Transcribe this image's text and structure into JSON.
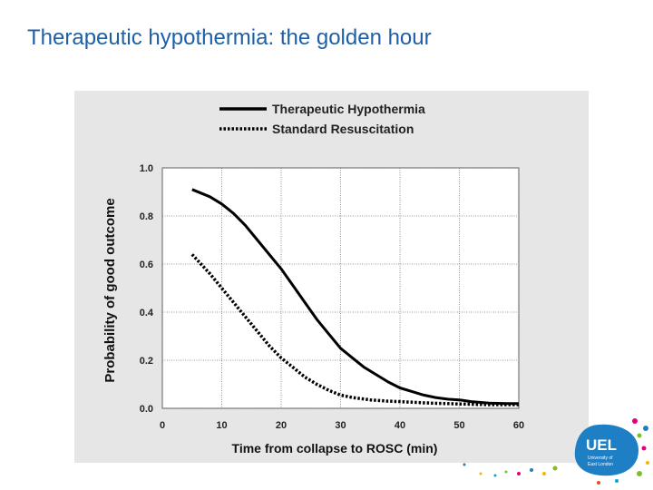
{
  "slide": {
    "title": "Therapeutic hypothermia: the golden hour"
  },
  "logo": {
    "text": "UEL",
    "subtext_line1": "University of",
    "subtext_line2": "East London",
    "color": "#1f7fc4"
  },
  "chart_data": {
    "type": "line",
    "title": "",
    "xlabel": "Time from collapse to ROSC (min)",
    "ylabel": "Probability of good outcome",
    "xlim": [
      0,
      60
    ],
    "ylim": [
      0,
      1.0
    ],
    "x_ticks": [
      "0",
      "10",
      "20",
      "30",
      "40",
      "50",
      "60"
    ],
    "y_ticks": [
      "0.0",
      "0.2",
      "0.4",
      "0.6",
      "0.8",
      "1.0"
    ],
    "grid": true,
    "legend_position": "top",
    "series": [
      {
        "name": "Therapeutic Hypothermia",
        "style": "solid",
        "color": "#000000",
        "x": [
          5,
          8,
          10,
          12,
          14,
          16,
          18,
          20,
          22,
          24,
          26,
          28,
          30,
          32,
          34,
          36,
          38,
          40,
          42,
          44,
          46,
          48,
          50,
          52,
          55,
          58,
          60
        ],
        "y": [
          0.91,
          0.88,
          0.85,
          0.81,
          0.76,
          0.7,
          0.64,
          0.58,
          0.51,
          0.44,
          0.37,
          0.31,
          0.25,
          0.21,
          0.17,
          0.14,
          0.11,
          0.085,
          0.07,
          0.055,
          0.045,
          0.038,
          0.035,
          0.028,
          0.022,
          0.02,
          0.02
        ]
      },
      {
        "name": "Standard Resuscitation",
        "style": "dotted",
        "color": "#000000",
        "x": [
          5,
          8,
          10,
          12,
          14,
          16,
          18,
          20,
          22,
          24,
          26,
          28,
          30,
          32,
          35,
          38,
          40,
          45,
          50,
          55,
          60
        ],
        "y": [
          0.64,
          0.56,
          0.5,
          0.44,
          0.38,
          0.32,
          0.26,
          0.21,
          0.17,
          0.13,
          0.1,
          0.075,
          0.055,
          0.045,
          0.035,
          0.03,
          0.028,
          0.022,
          0.018,
          0.015,
          0.015
        ]
      }
    ]
  }
}
